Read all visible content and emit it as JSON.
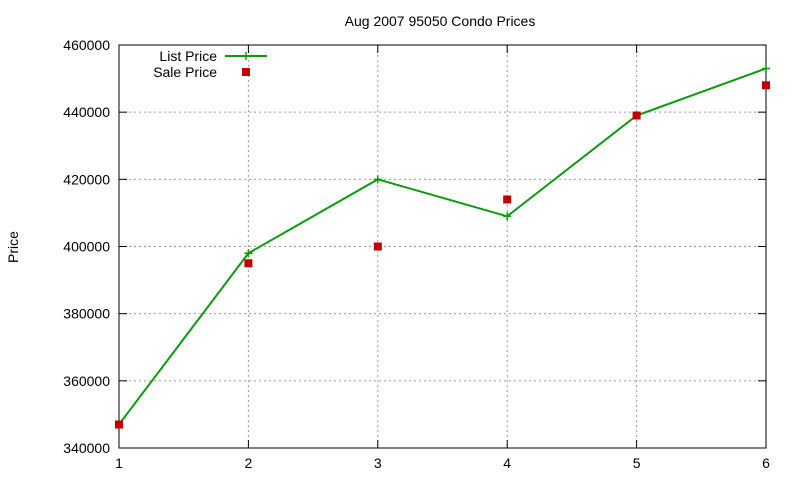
{
  "chart_data": {
    "type": "line",
    "title": "Aug 2007 95050 Condo Prices",
    "xlabel": "",
    "ylabel": "Price",
    "x": [
      1,
      2,
      3,
      4,
      5,
      6
    ],
    "xlim": [
      1,
      6
    ],
    "ylim": [
      340000,
      460000
    ],
    "xticks": [
      1,
      2,
      3,
      4,
      5,
      6
    ],
    "yticks": [
      340000,
      360000,
      380000,
      400000,
      420000,
      440000,
      460000
    ],
    "grid": true,
    "legend_position": "top-left",
    "series": [
      {
        "name": "List Price",
        "style": "line-with-plus-markers",
        "color": "#0a9b0a",
        "values": [
          347000,
          398000,
          420000,
          409000,
          439000,
          453000
        ]
      },
      {
        "name": "Sale Price",
        "style": "square-markers",
        "color": "#c00000",
        "values": [
          347000,
          395000,
          400000,
          414000,
          439000,
          448000
        ]
      }
    ]
  }
}
